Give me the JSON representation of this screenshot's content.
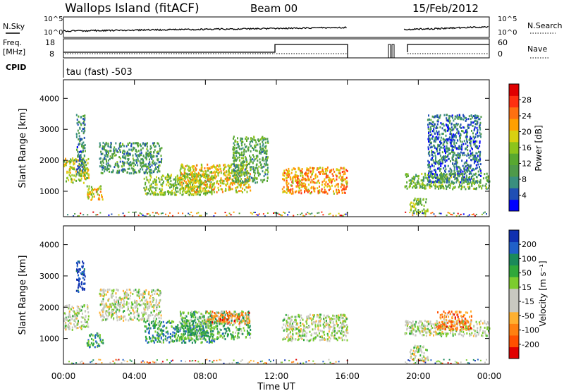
{
  "header": {
    "title": "Wallops Island (fitACF)",
    "beam": "Beam 00",
    "date": "15/Feb/2012"
  },
  "status_panels": {
    "nsky_label": "N.Sky",
    "nsearch_label": "N.Search",
    "count_ticks": [
      "10^5",
      "10^0"
    ],
    "freq_label": "Freq.",
    "freq_unit": "[MHz]",
    "freq_ticks": [
      "18",
      "8"
    ],
    "nave_label": "Nave",
    "nave_ticks": [
      "60",
      "0"
    ],
    "cpid_label": "CPID",
    "cpid_text": "tau (fast) -503"
  },
  "chart_data": [
    {
      "type": "heatmap",
      "name": "power",
      "xlabel": "",
      "ylabel": "Slant Range [km]",
      "xlim_hours": [
        0,
        24
      ],
      "ylim_km": [
        180,
        4600
      ],
      "x_ticks": [
        "00:00",
        "04:00",
        "08:00",
        "12:00",
        "16:00",
        "20:00",
        "00:00"
      ],
      "y_ticks": [
        1000,
        2000,
        3000,
        4000
      ],
      "colorbar": {
        "label": "Power [dB]",
        "ticks": [
          4,
          8,
          12,
          16,
          20,
          24,
          28
        ],
        "colors": [
          "#0000ff",
          "#1f4fb4",
          "#3a8f7f",
          "#4f9a4a",
          "#58a830",
          "#8cc41c",
          "#d8d010",
          "#ffa000",
          "#ff7010",
          "#ff3010",
          "#e00000"
        ]
      },
      "data_gap_hours": [
        16.0,
        19.2
      ],
      "regions": [
        {
          "t": [
            0.0,
            1.4
          ],
          "r": [
            1300,
            2100
          ],
          "level": 0.55
        },
        {
          "t": [
            0.7,
            1.2
          ],
          "r": [
            1500,
            3500
          ],
          "level": 0.25
        },
        {
          "t": [
            1.3,
            2.2
          ],
          "r": [
            750,
            1200
          ],
          "level": 0.6
        },
        {
          "t": [
            2.0,
            5.5
          ],
          "r": [
            1600,
            2600
          ],
          "level": 0.3
        },
        {
          "t": [
            4.5,
            8.5
          ],
          "r": [
            900,
            1600
          ],
          "level": 0.45
        },
        {
          "t": [
            6.5,
            10.5
          ],
          "r": [
            1000,
            1900
          ],
          "level": 0.6
        },
        {
          "t": [
            9.5,
            11.5
          ],
          "r": [
            1300,
            2800
          ],
          "level": 0.35
        },
        {
          "t": [
            12.3,
            16.0
          ],
          "r": [
            950,
            1800
          ],
          "level": 0.7
        },
        {
          "t": [
            19.2,
            24.0
          ],
          "r": [
            1100,
            1600
          ],
          "level": 0.4
        },
        {
          "t": [
            19.5,
            20.5
          ],
          "r": [
            300,
            800
          ],
          "level": 0.45
        },
        {
          "t": [
            20.5,
            23.5
          ],
          "r": [
            1300,
            3500
          ],
          "level": 0.2
        }
      ]
    },
    {
      "type": "heatmap",
      "name": "velocity",
      "xlabel": "Time UT",
      "ylabel": "Slant Range [km]",
      "xlim_hours": [
        0,
        24
      ],
      "ylim_km": [
        180,
        4600
      ],
      "x_ticks": [
        "00:00",
        "04:00",
        "08:00",
        "12:00",
        "16:00",
        "20:00",
        "00:00"
      ],
      "y_ticks": [
        1000,
        2000,
        3000,
        4000
      ],
      "colorbar": {
        "label": "Velocity [m s⁻¹]",
        "ticks": [
          200,
          100,
          50,
          15,
          -15,
          -50,
          -100,
          -200
        ],
        "colors": [
          "#1030b0",
          "#2060c8",
          "#1a8a5a",
          "#2fa83a",
          "#7ccc2e",
          "#c8c8c0",
          "#c8c8c0",
          "#ffb030",
          "#ff8010",
          "#ff5000",
          "#e00000"
        ]
      },
      "data_gap_hours": [
        16.0,
        19.2
      ],
      "regions": [
        {
          "t": [
            0.0,
            1.4
          ],
          "r": [
            1300,
            2100
          ],
          "level": 0.5
        },
        {
          "t": [
            0.7,
            1.2
          ],
          "r": [
            2500,
            3500
          ],
          "level": 0.05
        },
        {
          "t": [
            1.3,
            2.2
          ],
          "r": [
            750,
            1200
          ],
          "level": 0.3
        },
        {
          "t": [
            2.0,
            5.5
          ],
          "r": [
            1600,
            2600
          ],
          "level": 0.5
        },
        {
          "t": [
            4.5,
            8.5
          ],
          "r": [
            900,
            1600
          ],
          "level": 0.3
        },
        {
          "t": [
            6.5,
            10.5
          ],
          "r": [
            1000,
            1900
          ],
          "level": 0.35
        },
        {
          "t": [
            8.0,
            10.5
          ],
          "r": [
            1500,
            1900
          ],
          "level": 0.75
        },
        {
          "t": [
            12.3,
            16.0
          ],
          "r": [
            950,
            1800
          ],
          "level": 0.5
        },
        {
          "t": [
            19.2,
            24.0
          ],
          "r": [
            1100,
            1600
          ],
          "level": 0.5
        },
        {
          "t": [
            21.0,
            23.0
          ],
          "r": [
            1300,
            1900
          ],
          "level": 0.75
        },
        {
          "t": [
            19.5,
            20.5
          ],
          "r": [
            300,
            800
          ],
          "level": 0.5
        }
      ]
    }
  ]
}
